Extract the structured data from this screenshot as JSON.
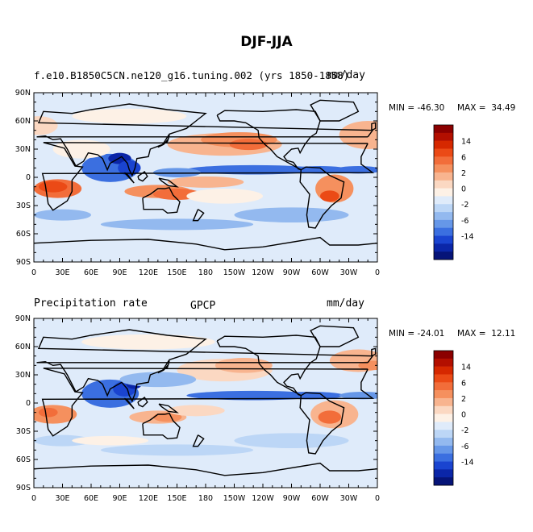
{
  "title": "DJF-JJA",
  "panels": [
    {
      "left_label": "f.e10.B1850C5CN.ne120_g16.tuning.002 (yrs 1850-1858)",
      "center_label": "",
      "right_label": "mm/day",
      "min_label": "MIN = -46.30",
      "max_label": "MAX =  34.49"
    },
    {
      "left_label": "Precipitation rate",
      "center_label": "GPCP",
      "right_label": "mm/day",
      "min_label": "MIN = -24.01",
      "max_label": "MAX =  12.11"
    }
  ],
  "lat_ticks": [
    "90N",
    "60N",
    "30N",
    "0",
    "30S",
    "60S",
    "90S"
  ],
  "lon_ticks": [
    "0",
    "30E",
    "60E",
    "90E",
    "120E",
    "150E",
    "180",
    "150W",
    "120W",
    "90W",
    "60W",
    "30W",
    "0"
  ],
  "colorbar_labels": [
    "14",
    "6",
    "2",
    "0",
    "-2",
    "-6",
    "-14"
  ],
  "colors": {
    "levels": [
      "#8b0000",
      "#b30f00",
      "#d62800",
      "#eb4a16",
      "#f26d3a",
      "#f5905e",
      "#f8b48f",
      "#fbd8c2",
      "#fdf1e6",
      "#dfebfa",
      "#bcd6f6",
      "#93b9ef",
      "#6697e8",
      "#3b6fe0",
      "#1a44d0",
      "#0b26a8",
      "#061478"
    ]
  }
}
